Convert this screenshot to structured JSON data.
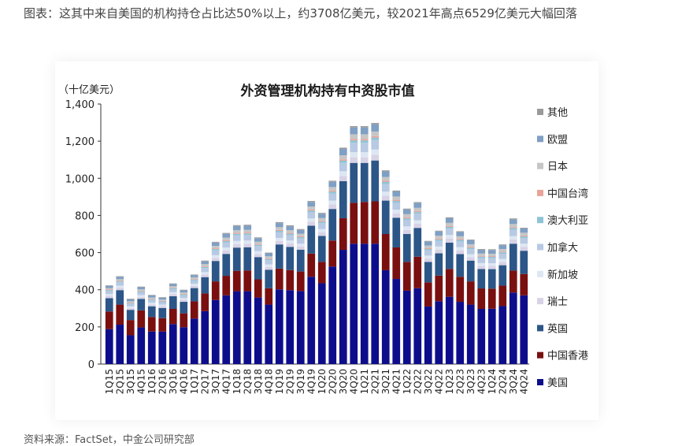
{
  "caption": "图表：这其中来自美国的机构持仓占比达50%以上，约3708亿美元，较2021年高点6529亿美元大幅回落",
  "source": "资料来源：FactSet，中金公司研究部",
  "chart_data": {
    "type": "bar",
    "stacked": true,
    "title": "外资管理机构持有中资股市值",
    "unit_label": "（十亿美元）",
    "ylim": [
      0,
      1400
    ],
    "yticks": [
      0,
      200,
      400,
      600,
      800,
      1000,
      1200,
      1400
    ],
    "ytick_labels": [
      "0",
      "200",
      "400",
      "600",
      "800",
      "1,000",
      "1,200",
      "1,400"
    ],
    "categories": [
      "1Q15",
      "2Q15",
      "3Q15",
      "4Q15",
      "1Q16",
      "2Q16",
      "3Q16",
      "4Q16",
      "1Q17",
      "2Q17",
      "3Q17",
      "4Q17",
      "1Q18",
      "2Q18",
      "3Q18",
      "4Q18",
      "1Q19",
      "2Q19",
      "3Q19",
      "4Q19",
      "1Q20",
      "2Q20",
      "3Q20",
      "4Q20",
      "1Q21",
      "2Q21",
      "3Q21",
      "4Q21",
      "1Q22",
      "2Q22",
      "3Q22",
      "4Q22",
      "1Q23",
      "2Q23",
      "3Q23",
      "4Q23",
      "1Q24",
      "2Q24",
      "3Q24",
      "4Q24"
    ],
    "series": [
      {
        "name": "美国",
        "color": "#0d0d8c",
        "values": [
          188,
          212,
          155,
          197,
          175,
          175,
          215,
          198,
          245,
          285,
          345,
          370,
          392,
          392,
          358,
          320,
          402,
          398,
          393,
          470,
          435,
          525,
          615,
          648,
          648,
          648,
          505,
          458,
          395,
          408,
          310,
          338,
          362,
          335,
          320,
          297,
          298,
          312,
          385,
          370
        ]
      },
      {
        "name": "中国香港",
        "color": "#7a0f10",
        "values": [
          95,
          108,
          82,
          92,
          78,
          72,
          82,
          75,
          92,
          95,
          100,
          105,
          110,
          112,
          98,
          88,
          112,
          108,
          105,
          125,
          115,
          140,
          170,
          220,
          225,
          228,
          195,
          170,
          155,
          170,
          130,
          138,
          150,
          135,
          125,
          110,
          108,
          110,
          118,
          115
        ]
      },
      {
        "name": "英国",
        "color": "#2c5687",
        "values": [
          72,
          78,
          55,
          62,
          58,
          55,
          68,
          62,
          72,
          88,
          110,
          118,
          125,
          125,
          120,
          100,
          130,
          125,
          118,
          150,
          140,
          170,
          200,
          215,
          210,
          220,
          180,
          160,
          150,
          155,
          110,
          120,
          142,
          122,
          112,
          105,
          105,
          110,
          145,
          125
        ]
      },
      {
        "name": "瑞士",
        "color": "#d8d2e6",
        "values": [
          12,
          13,
          10,
          11,
          10,
          10,
          12,
          11,
          12,
          14,
          16,
          18,
          19,
          19,
          17,
          15,
          19,
          18,
          17,
          21,
          20,
          24,
          28,
          30,
          30,
          31,
          26,
          23,
          22,
          22,
          18,
          20,
          22,
          20,
          18,
          17,
          17,
          18,
          22,
          20
        ]
      },
      {
        "name": "新加坡",
        "color": "#dde7f3",
        "values": [
          10,
          11,
          8,
          9,
          9,
          8,
          10,
          9,
          11,
          13,
          15,
          16,
          17,
          17,
          15,
          13,
          16,
          16,
          15,
          18,
          17,
          21,
          25,
          28,
          28,
          28,
          22,
          20,
          19,
          19,
          16,
          17,
          19,
          17,
          16,
          15,
          15,
          16,
          19,
          18
        ]
      },
      {
        "name": "加拿大",
        "color": "#b7c9e3",
        "values": [
          16,
          18,
          14,
          15,
          14,
          13,
          16,
          15,
          18,
          22,
          26,
          28,
          30,
          30,
          27,
          23,
          30,
          29,
          28,
          33,
          31,
          38,
          45,
          50,
          50,
          51,
          41,
          37,
          34,
          35,
          28,
          30,
          34,
          31,
          28,
          27,
          27,
          28,
          34,
          31
        ]
      },
      {
        "name": "澳大利亚",
        "color": "#8ec4d6",
        "values": [
          5,
          5,
          4,
          5,
          4,
          4,
          5,
          5,
          5,
          6,
          7,
          7,
          8,
          8,
          7,
          6,
          8,
          8,
          7,
          9,
          8,
          10,
          12,
          13,
          13,
          13,
          11,
          10,
          9,
          9,
          7,
          8,
          9,
          8,
          7,
          7,
          7,
          7,
          9,
          8
        ]
      },
      {
        "name": "中国台湾",
        "color": "#e8a49a",
        "values": [
          3,
          3,
          3,
          3,
          3,
          3,
          3,
          3,
          3,
          4,
          4,
          5,
          5,
          5,
          4,
          4,
          5,
          5,
          5,
          6,
          5,
          6,
          7,
          8,
          8,
          8,
          7,
          6,
          6,
          6,
          5,
          5,
          5,
          5,
          5,
          4,
          4,
          4,
          5,
          5
        ]
      },
      {
        "name": "日本",
        "color": "#c6c6c6",
        "values": [
          8,
          9,
          7,
          8,
          7,
          7,
          8,
          8,
          9,
          11,
          13,
          14,
          15,
          15,
          13,
          11,
          15,
          14,
          14,
          16,
          15,
          19,
          22,
          25,
          25,
          25,
          20,
          18,
          17,
          17,
          14,
          15,
          17,
          15,
          14,
          13,
          13,
          14,
          17,
          15
        ]
      },
      {
        "name": "欧盟",
        "color": "#7f9fc4",
        "values": [
          12,
          13,
          11,
          12,
          11,
          10,
          12,
          11,
          12,
          15,
          18,
          20,
          22,
          22,
          19,
          16,
          22,
          21,
          20,
          25,
          23,
          28,
          34,
          37,
          37,
          38,
          30,
          27,
          25,
          26,
          21,
          23,
          25,
          23,
          21,
          20,
          20,
          21,
          25,
          23
        ]
      },
      {
        "name": "其他",
        "color": "#9a9a9a",
        "values": [
          3,
          3,
          3,
          3,
          3,
          3,
          3,
          3,
          3,
          4,
          4,
          5,
          5,
          5,
          4,
          4,
          5,
          5,
          5,
          5,
          5,
          6,
          7,
          7,
          7,
          8,
          6,
          5,
          5,
          5,
          4,
          4,
          5,
          4,
          4,
          4,
          4,
          4,
          5,
          4
        ]
      }
    ],
    "legend_order": [
      "其他",
      "欧盟",
      "日本",
      "中国台湾",
      "澳大利亚",
      "加拿大",
      "新加坡",
      "瑞士",
      "英国",
      "中国香港",
      "美国"
    ],
    "legend_position": "right",
    "grid": false
  }
}
